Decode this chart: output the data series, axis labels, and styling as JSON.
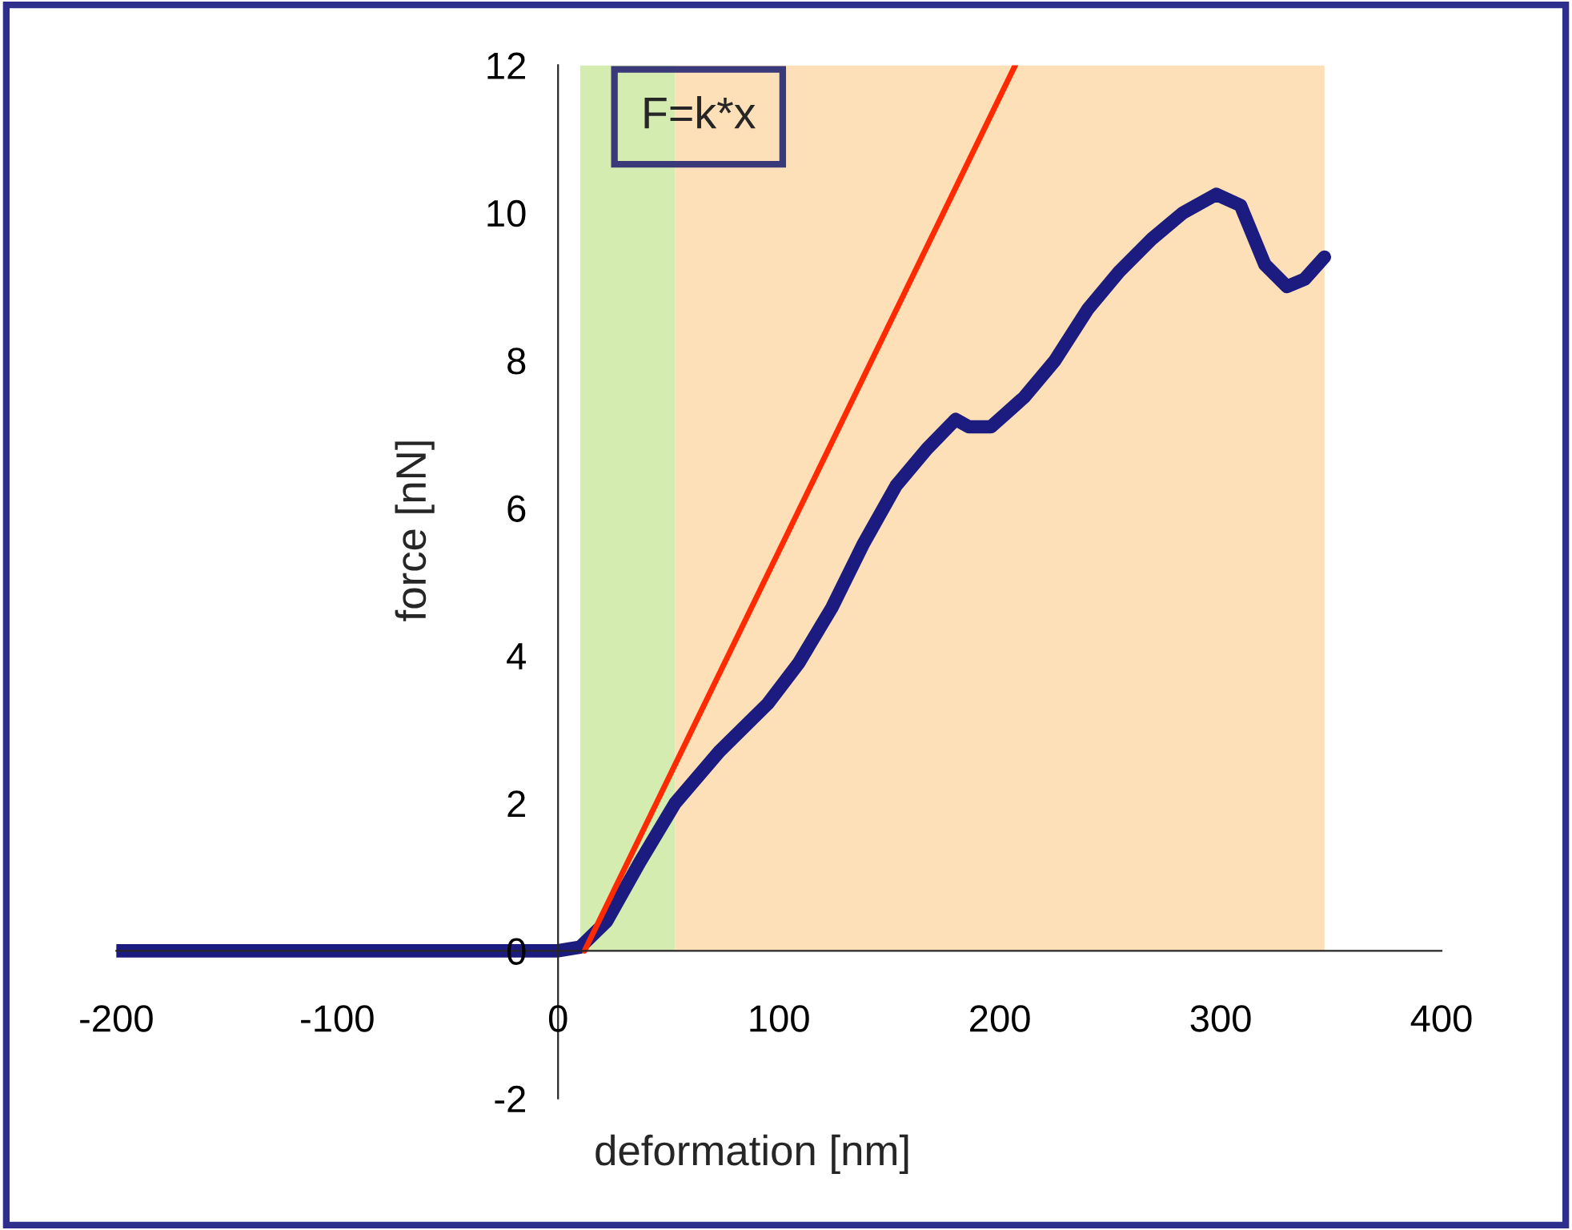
{
  "chart_data": {
    "type": "line",
    "xlabel": "deformation [nm]",
    "ylabel": "force [nN]",
    "xlim": [
      -200,
      400
    ],
    "ylim": [
      -2,
      12
    ],
    "xticks": [
      -200,
      -100,
      0,
      100,
      200,
      300,
      400
    ],
    "yticks": [
      -2,
      0,
      2,
      4,
      6,
      8,
      10,
      12
    ],
    "grid": false,
    "legend": false,
    "bands": [
      {
        "axis": "x",
        "from": 10,
        "to": 53,
        "color": "#d4ecb0"
      },
      {
        "axis": "x",
        "from": 53,
        "to": 347,
        "color": "#fde0b8"
      }
    ],
    "series": [
      {
        "color": "#1c1c80",
        "x": [
          -200,
          -100,
          0,
          10,
          22,
          37,
          53,
          73,
          95,
          109,
          124,
          138,
          153,
          167,
          180,
          186,
          196,
          211,
          225,
          240,
          254,
          269,
          283,
          298,
          309,
          320,
          330,
          338,
          347
        ],
        "values": [
          0,
          0,
          0,
          0.05,
          0.4,
          1.2,
          2.0,
          2.7,
          3.35,
          3.9,
          4.65,
          5.5,
          6.3,
          6.8,
          7.2,
          7.1,
          7.1,
          7.5,
          8.0,
          8.7,
          9.2,
          9.65,
          10.0,
          10.25,
          10.1,
          9.3,
          9.0,
          9.1,
          9.4
        ]
      },
      {
        "color": "#ff2a00",
        "x": [
          12,
          207
        ],
        "values": [
          0,
          12
        ]
      }
    ],
    "annotations": [
      "F=k*x"
    ]
  }
}
